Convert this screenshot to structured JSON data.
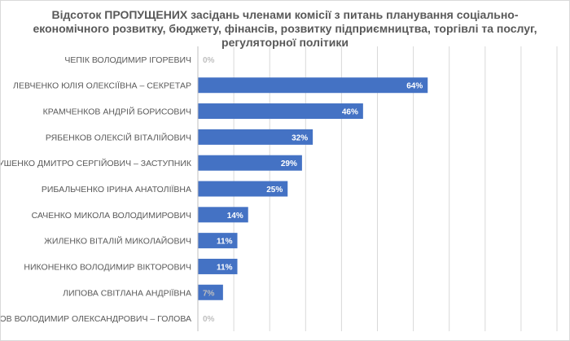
{
  "chart_data": {
    "type": "bar",
    "orientation": "horizontal",
    "title": "Відсоток ПРОПУЩЕНИХ засідань членами комісії з питань планування соціально-економічного розвитку, бюджету, фінансів, розвитку підприємництва, торгівлі та послуг, регуляторної політики",
    "categories": [
      "ЧЕПІК ВОЛОДИМИР ІГОРЕВИЧ",
      "ЛЕВЧЕНКО ЮЛІЯ ОЛЕКСІЇВНА – СЕКРЕТАР",
      "КРАМЧЕНКОВ АНДРІЙ БОРИСОВИЧ",
      "РЯБЕНКОВ ОЛЕКСІЙ ВІТАЛІЙОВИЧ",
      "ЛАНТУШЕНКО ДМИТРО СЕРГІЙОВИЧ – ЗАСТУПНИК",
      "РИБАЛЬЧЕНКО ІРИНА АНАТОЛІЇВНА",
      "САЧЕНКО МИКОЛА ВОЛОДИМИРОВИЧ",
      "ЖИЛЕНКО ВІТАЛІЙ МИКОЛАЙОВИЧ",
      "НИКОНЕНКО ВОЛОДИМИР ВІКТОРОВИЧ",
      "ЛИПОВА СВІТЛАНА АНДРІЇВНА",
      "ШИЛОВ ВОЛОДИМИР ОЛЕКСАНДРОВИЧ – ГОЛОВА"
    ],
    "values": [
      0,
      64,
      46,
      32,
      29,
      25,
      14,
      11,
      11,
      7,
      0
    ],
    "data_labels": [
      "0%",
      "64%",
      "46%",
      "32%",
      "29%",
      "25%",
      "14%",
      "11%",
      "11%",
      "7%",
      "0%"
    ],
    "xlim": [
      0,
      100
    ],
    "grid": true,
    "legend": "none",
    "colors": {
      "bar": "#4472c4",
      "grid": "#d9d9d9",
      "text": "#595959"
    }
  }
}
